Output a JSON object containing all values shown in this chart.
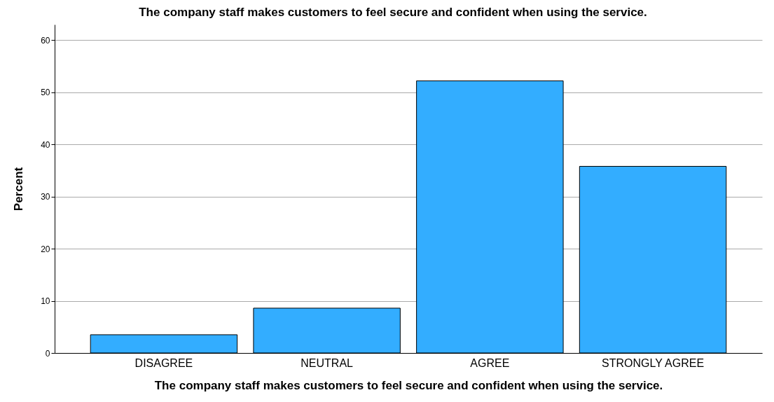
{
  "chart_data": {
    "type": "bar",
    "title": "The company staff makes customers to feel secure and confident when using the service.",
    "xlabel": "The company staff makes customers to feel secure and confident when using the service.",
    "ylabel": "Percent",
    "categories": [
      "DISAGREE",
      "NEUTRAL",
      "AGREE",
      "STRONGLY AGREE"
    ],
    "values": [
      3.5,
      8.6,
      52.2,
      35.8
    ],
    "color": "#33adff",
    "ylim": [
      0,
      63
    ],
    "yticks": [
      0,
      10,
      20,
      30,
      40,
      50,
      60
    ],
    "grid": "y"
  }
}
